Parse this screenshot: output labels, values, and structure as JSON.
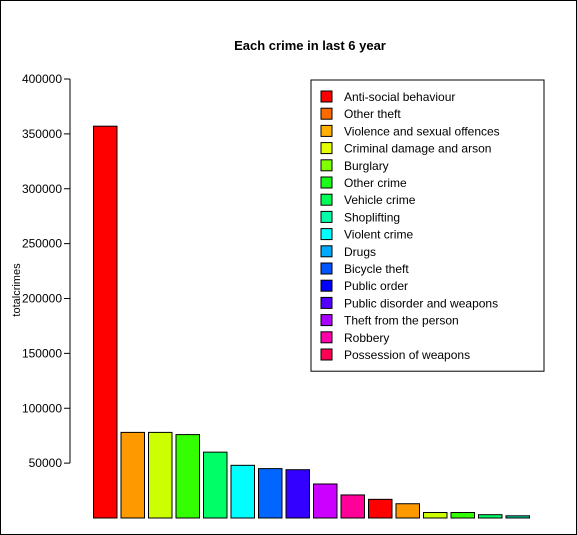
{
  "chart_data": {
    "type": "bar",
    "title": "Each crime in last 6 year",
    "ylabel": "totalcrimes",
    "xlabel": "",
    "ylim": [
      0,
      410000
    ],
    "yticks": [
      50000,
      100000,
      150000,
      200000,
      250000,
      300000,
      350000,
      400000
    ],
    "ytick_labels": [
      "50000",
      "100000",
      "150000",
      "200000",
      "250000",
      "300000",
      "350000",
      "400000"
    ],
    "legend_position": "top-right",
    "grid": false,
    "bars": [
      {
        "value": 357000,
        "color": "#FF0000"
      },
      {
        "value": 78000,
        "color": "#FF9900"
      },
      {
        "value": 78000,
        "color": "#CCFF00"
      },
      {
        "value": 76000,
        "color": "#33FF00"
      },
      {
        "value": 60000,
        "color": "#00FF66"
      },
      {
        "value": 48000,
        "color": "#00FFFF"
      },
      {
        "value": 45000,
        "color": "#0066FF"
      },
      {
        "value": 44000,
        "color": "#3300FF"
      },
      {
        "value": 31000,
        "color": "#CC00FF"
      },
      {
        "value": 21000,
        "color": "#FF0099"
      },
      {
        "value": 17000,
        "color": "#FF0000"
      },
      {
        "value": 13000,
        "color": "#FF9900"
      },
      {
        "value": 5000,
        "color": "#CCFF00"
      },
      {
        "value": 5000,
        "color": "#33FF00"
      },
      {
        "value": 3000,
        "color": "#00FF66"
      },
      {
        "value": 2000,
        "color": "#00CC99"
      }
    ],
    "legend": [
      {
        "label": "Anti-social behaviour",
        "color": "#FF0000"
      },
      {
        "label": "Other theft",
        "color": "#FF6A00"
      },
      {
        "label": "Violence and sexual offences",
        "color": "#FFB000"
      },
      {
        "label": "Criminal damage and arson",
        "color": "#E6FF00"
      },
      {
        "label": "Burglary",
        "color": "#80FF00"
      },
      {
        "label": "Other crime",
        "color": "#1AFF1A"
      },
      {
        "label": "Vehicle crime",
        "color": "#00FF55"
      },
      {
        "label": "Shoplifting",
        "color": "#00FFAA"
      },
      {
        "label": "Violent crime",
        "color": "#00FFFF"
      },
      {
        "label": "Drugs",
        "color": "#00AAFF"
      },
      {
        "label": "Bicycle theft",
        "color": "#0055FF"
      },
      {
        "label": "Public order",
        "color": "#0000FF"
      },
      {
        "label": "Public disorder and weapons",
        "color": "#5500FF"
      },
      {
        "label": "Theft from the person",
        "color": "#AA00FF"
      },
      {
        "label": "Robbery",
        "color": "#FF00AA"
      },
      {
        "label": "Possession of weapons",
        "color": "#FF0055"
      }
    ]
  }
}
